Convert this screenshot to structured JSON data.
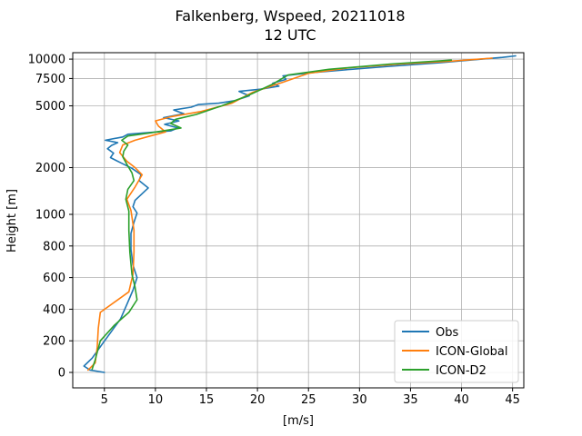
{
  "chart_data": {
    "type": "line",
    "title": "Falkenberg, Wspeed, 20211018",
    "subtitle": "12 UTC",
    "xlabel": "[m/s]",
    "ylabel": "Height [m]",
    "xlim": [
      1.9,
      46.1
    ],
    "x_ticks": [
      5,
      10,
      15,
      20,
      25,
      30,
      35,
      40,
      45
    ],
    "y_ticks": [
      {
        "label": "0",
        "value": 0
      },
      {
        "label": "200",
        "value": 200
      },
      {
        "label": "400",
        "value": 400
      },
      {
        "label": "600",
        "value": 600
      },
      {
        "label": "800",
        "value": 800
      },
      {
        "label": "1000",
        "value": 1000
      },
      {
        "label": "2000",
        "value": 2000
      },
      {
        "label": "5000",
        "value": 5000
      },
      {
        "label": "7500",
        "value": 7500
      },
      {
        "label": "10000",
        "value": 10000
      }
    ],
    "grid": true,
    "legend_position": "bottom-right",
    "series": [
      {
        "name": "Obs",
        "color": "#1f77b4",
        "points": [
          [
            5.0,
            0
          ],
          [
            3.6,
            15
          ],
          [
            3.0,
            40
          ],
          [
            3.8,
            90
          ],
          [
            4.8,
            180
          ],
          [
            5.7,
            260
          ],
          [
            6.6,
            340
          ],
          [
            7.2,
            430
          ],
          [
            7.8,
            520
          ],
          [
            8.2,
            600
          ],
          [
            7.8,
            680
          ],
          [
            7.6,
            780
          ],
          [
            7.6,
            880
          ],
          [
            7.9,
            950
          ],
          [
            8.2,
            1020
          ],
          [
            7.8,
            1120
          ],
          [
            8.0,
            1230
          ],
          [
            9.3,
            1480
          ],
          [
            8.4,
            1650
          ],
          [
            8.6,
            1800
          ],
          [
            7.7,
            1980
          ],
          [
            6.6,
            2150
          ],
          [
            5.6,
            2320
          ],
          [
            5.9,
            2480
          ],
          [
            5.3,
            2650
          ],
          [
            5.7,
            2780
          ],
          [
            6.3,
            2900
          ],
          [
            5.1,
            3000
          ],
          [
            6.8,
            3150
          ],
          [
            7.3,
            3280
          ],
          [
            8.9,
            3350
          ],
          [
            11.5,
            3450
          ],
          [
            12.2,
            3600
          ],
          [
            10.9,
            3800
          ],
          [
            12.3,
            4000
          ],
          [
            10.8,
            4200
          ],
          [
            12.8,
            4450
          ],
          [
            11.8,
            4700
          ],
          [
            13.5,
            4900
          ],
          [
            14.2,
            5100
          ],
          [
            16.2,
            5200
          ],
          [
            17.8,
            5400
          ],
          [
            19.2,
            5800
          ],
          [
            18.2,
            6200
          ],
          [
            20.3,
            6400
          ],
          [
            22.1,
            6700
          ],
          [
            21.5,
            7000
          ],
          [
            22.8,
            7400
          ],
          [
            22.5,
            7800
          ],
          [
            25.5,
            8200
          ],
          [
            29.2,
            8600
          ],
          [
            33.0,
            9000
          ],
          [
            38.0,
            9500
          ],
          [
            42.0,
            10000
          ],
          [
            44.0,
            10250
          ],
          [
            45.3,
            10500
          ]
        ]
      },
      {
        "name": "ICON-Global",
        "color": "#ff7f0e",
        "points": [
          [
            3.4,
            15
          ],
          [
            4.1,
            60
          ],
          [
            4.3,
            160
          ],
          [
            4.4,
            280
          ],
          [
            4.6,
            380
          ],
          [
            7.4,
            510
          ],
          [
            7.8,
            620
          ],
          [
            7.9,
            760
          ],
          [
            7.9,
            900
          ],
          [
            7.6,
            1060
          ],
          [
            7.2,
            1250
          ],
          [
            8.0,
            1500
          ],
          [
            8.7,
            1800
          ],
          [
            8.0,
            2000
          ],
          [
            7.2,
            2200
          ],
          [
            6.5,
            2500
          ],
          [
            6.8,
            2800
          ],
          [
            8.0,
            3000
          ],
          [
            9.5,
            3200
          ],
          [
            11.0,
            3400
          ],
          [
            10.3,
            3700
          ],
          [
            10.0,
            4000
          ],
          [
            11.5,
            4250
          ],
          [
            14.5,
            4600
          ],
          [
            17.5,
            5200
          ],
          [
            19.5,
            6100
          ],
          [
            22.5,
            7100
          ],
          [
            25.0,
            8100
          ],
          [
            29.0,
            8800
          ],
          [
            34.0,
            9300
          ],
          [
            39.0,
            9700
          ],
          [
            43.0,
            10150
          ]
        ]
      },
      {
        "name": "ICON-D2",
        "color": "#2ca02c",
        "points": [
          [
            3.8,
            20
          ],
          [
            4.1,
            80
          ],
          [
            4.6,
            200
          ],
          [
            6.0,
            300
          ],
          [
            7.4,
            380
          ],
          [
            8.2,
            460
          ],
          [
            8.0,
            540
          ],
          [
            7.7,
            620
          ],
          [
            7.5,
            760
          ],
          [
            7.4,
            900
          ],
          [
            7.4,
            1050
          ],
          [
            7.1,
            1250
          ],
          [
            7.3,
            1450
          ],
          [
            7.9,
            1650
          ],
          [
            7.7,
            1850
          ],
          [
            7.2,
            2100
          ],
          [
            6.8,
            2350
          ],
          [
            6.9,
            2550
          ],
          [
            7.3,
            2800
          ],
          [
            6.7,
            3000
          ],
          [
            7.3,
            3200
          ],
          [
            9.5,
            3350
          ],
          [
            12.5,
            3600
          ],
          [
            11.5,
            3850
          ],
          [
            12.0,
            4100
          ],
          [
            14.0,
            4400
          ],
          [
            16.5,
            5000
          ],
          [
            19.0,
            5800
          ],
          [
            21.5,
            6900
          ],
          [
            23.0,
            7900
          ],
          [
            27.0,
            8600
          ],
          [
            33.0,
            9300
          ],
          [
            39.0,
            9850
          ]
        ]
      }
    ]
  }
}
